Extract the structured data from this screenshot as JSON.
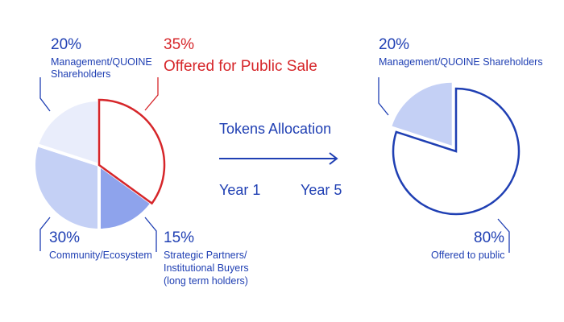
{
  "colors": {
    "blue": "#1f3fb3",
    "red": "#d6262a",
    "slice_light": "#e9edfb",
    "slice_mid": "#c4d0f5",
    "slice_dark": "#8ea3ec",
    "white": "#ffffff"
  },
  "center": {
    "title": "Tokens Allocation",
    "year_start": "Year 1",
    "year_end": "Year 5"
  },
  "chart_data": [
    {
      "type": "pie",
      "slices": [
        {
          "value": 35,
          "percent_label": "35%",
          "label": "Offered for Public Sale",
          "highlight": true
        },
        {
          "value": 15,
          "percent_label": "15%",
          "label": "Strategic Partners/ Institutional Buyers (long term holders)"
        },
        {
          "value": 30,
          "percent_label": "30%",
          "label": "Community/Ecosystem"
        },
        {
          "value": 20,
          "percent_label": "20%",
          "label": "Management/QUOINE Shareholders"
        }
      ]
    },
    {
      "type": "pie",
      "slices": [
        {
          "value": 80,
          "percent_label": "80%",
          "label": "Offered to public"
        },
        {
          "value": 20,
          "percent_label": "20%",
          "label": "Management/QUOINE Shareholders"
        }
      ]
    }
  ],
  "labels": {
    "left_20_line1": "Management/QUOINE",
    "left_20_line2": "Shareholders",
    "left_15_line1": "Strategic Partners/",
    "left_15_line2": "Institutional Buyers",
    "left_15_line3": "(long term holders)"
  }
}
